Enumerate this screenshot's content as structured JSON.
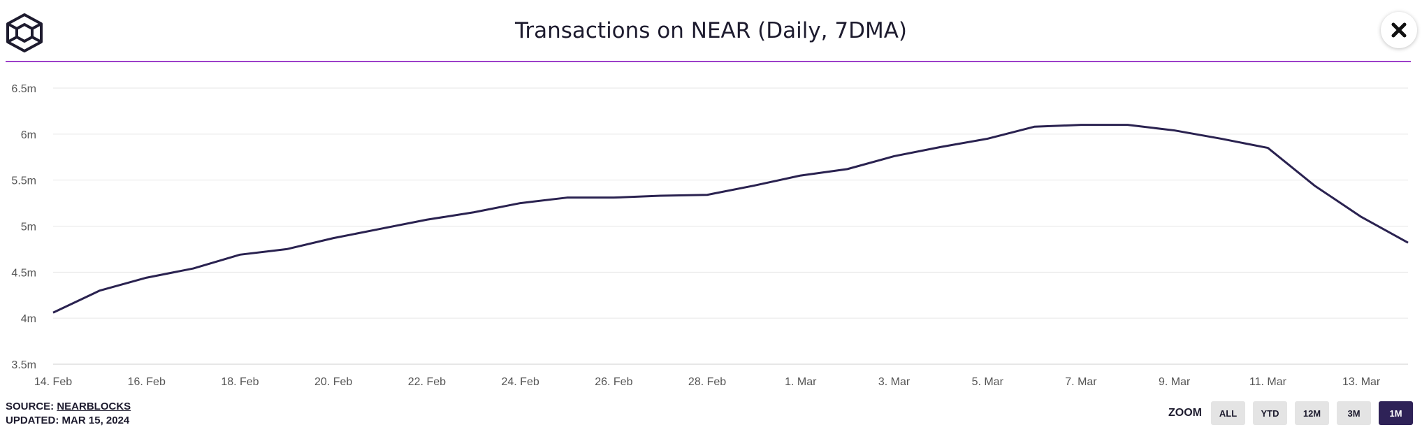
{
  "header": {
    "logo_icon": "cube-logo-icon",
    "title": "Transactions on NEAR (Daily, 7DMA)",
    "close_icon": "close-icon"
  },
  "colors": {
    "line": "#2a2250",
    "divider": "#9c3fc9",
    "grid": "#e6e6e6",
    "active_zoom": "#2e2257",
    "inactive_zoom": "#e4e4e4"
  },
  "chart_data": {
    "type": "line",
    "title": "Transactions on NEAR (Daily, 7DMA)",
    "xlabel": "",
    "ylabel": "",
    "ylim": [
      3.5,
      6.5
    ],
    "yticks": [
      {
        "value": 3.5,
        "label": "3.5m"
      },
      {
        "value": 4.0,
        "label": "4m"
      },
      {
        "value": 4.5,
        "label": "4.5m"
      },
      {
        "value": 5.0,
        "label": "5m"
      },
      {
        "value": 5.5,
        "label": "5.5m"
      },
      {
        "value": 6.0,
        "label": "6m"
      },
      {
        "value": 6.5,
        "label": "6.5m"
      }
    ],
    "xticks": [
      "14. Feb",
      "16. Feb",
      "18. Feb",
      "20. Feb",
      "22. Feb",
      "24. Feb",
      "26. Feb",
      "28. Feb",
      "1. Mar",
      "3. Mar",
      "5. Mar",
      "7. Mar",
      "9. Mar",
      "11. Mar",
      "13. Mar"
    ],
    "grid": true,
    "legend": "none",
    "series": [
      {
        "x": [
          "14. Feb",
          "15. Feb",
          "16. Feb",
          "17. Feb",
          "18. Feb",
          "19. Feb",
          "20. Feb",
          "21. Feb",
          "22. Feb",
          "23. Feb",
          "24. Feb",
          "25. Feb",
          "26. Feb",
          "27. Feb",
          "28. Feb",
          "29. Feb",
          "1. Mar",
          "2. Mar",
          "3. Mar",
          "4. Mar",
          "5. Mar",
          "6. Mar",
          "7. Mar",
          "8. Mar",
          "9. Mar",
          "10. Mar",
          "11. Mar",
          "12. Mar",
          "13. Mar",
          "14. Mar"
        ],
        "values": [
          4.06,
          4.3,
          4.44,
          4.54,
          4.69,
          4.75,
          4.87,
          4.97,
          5.07,
          5.15,
          5.25,
          5.31,
          5.31,
          5.33,
          5.34,
          5.44,
          5.55,
          5.62,
          5.76,
          5.86,
          5.95,
          6.08,
          6.1,
          6.1,
          6.04,
          5.95,
          5.85,
          5.44,
          5.1,
          4.82
        ]
      }
    ]
  },
  "footer": {
    "source_label": "SOURCE: ",
    "source_link": "NEARBLOCKS",
    "updated": "UPDATED: MAR 15, 2024"
  },
  "zoom": {
    "label": "ZOOM",
    "buttons": [
      "ALL",
      "YTD",
      "12M",
      "3M",
      "1M"
    ],
    "active": "1M"
  }
}
